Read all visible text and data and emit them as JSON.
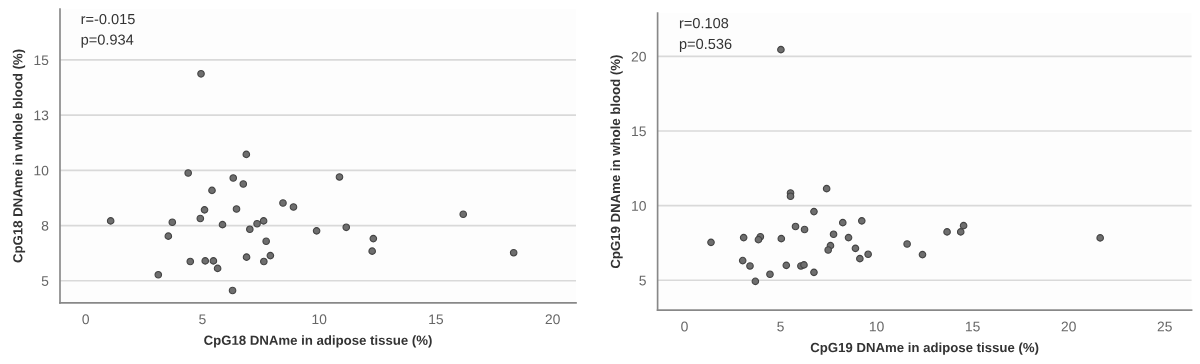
{
  "chart_data": [
    {
      "type": "scatter",
      "xlabel": "CpG18 DNAme in adipose tissue (%)",
      "ylabel": "CpG18 DNAme in whole blood (%)",
      "annotations": [
        "r=-0.015",
        "p=0.934"
      ],
      "grid": "y",
      "marker": "circle",
      "xlim": [
        -1.1,
        21
      ],
      "xticks": [
        0,
        5,
        10,
        15,
        20
      ],
      "ylim": [
        4,
        17.3
      ],
      "yticks": [
        5,
        {
          "value": 7.5,
          "label": "8"
        },
        10,
        {
          "value": 12.5,
          "label": "13"
        },
        15
      ],
      "series": [
        {
          "color": "#6e6e6e",
          "x": [
            1.07,
            4.94,
            6.88,
            4.39,
            6.32,
            6.75,
            5.41,
            5.09,
            6.46,
            4.91,
            3.71,
            5.86,
            7.34,
            7.62,
            7.03,
            3.54,
            7.73,
            7.91,
            6.89,
            4.48,
            5.12,
            5.47,
            7.63,
            5.65,
            3.11,
            6.29,
            8.45,
            8.9,
            10.87,
            9.89,
            11.16,
            12.32,
            12.27,
            16.17,
            18.33
          ],
          "values": [
            7.71,
            14.37,
            10.72,
            9.88,
            9.65,
            9.38,
            9.09,
            8.21,
            8.25,
            7.82,
            7.65,
            7.54,
            7.58,
            7.71,
            7.33,
            7.02,
            6.79,
            6.14,
            6.07,
            5.87,
            5.9,
            5.9,
            5.87,
            5.56,
            5.27,
            4.56,
            8.52,
            8.34,
            9.7,
            7.26,
            7.42,
            6.91,
            6.34,
            8.01,
            6.27
          ]
        }
      ]
    },
    {
      "type": "scatter",
      "xlabel": "CpG19 DNAme in adipose tissue (%)",
      "ylabel": "CpG19 DNAme in whole blood (%)",
      "annotations": [
        "r=0.108",
        "p=0.536"
      ],
      "grid": "y",
      "marker": "circle",
      "xlim": [
        -1.4,
        26.4
      ],
      "xticks": [
        0,
        5,
        10,
        15,
        20,
        25
      ],
      "ylim": [
        3,
        22.9
      ],
      "yticks": [
        5,
        10,
        15,
        20
      ],
      "series": [
        {
          "color": "#6e6e6e",
          "x": [
            1.38,
            5.02,
            7.4,
            5.52,
            5.52,
            6.74,
            8.24,
            9.23,
            5.78,
            6.25,
            7.76,
            3.08,
            3.95,
            3.85,
            5.04,
            8.54,
            7.6,
            7.48,
            8.9,
            9.56,
            9.13,
            3.03,
            3.41,
            5.3,
            6.06,
            6.22,
            4.45,
            6.74,
            3.69,
            11.59,
            12.39,
            13.67,
            14.38,
            14.53,
            21.64
          ],
          "values": [
            7.54,
            20.45,
            11.14,
            10.85,
            10.63,
            9.6,
            8.86,
            8.98,
            8.6,
            8.4,
            8.08,
            7.86,
            7.92,
            7.72,
            7.79,
            7.86,
            7.32,
            7.03,
            7.14,
            6.74,
            6.45,
            6.32,
            5.96,
            6.0,
            5.96,
            6.03,
            5.4,
            5.53,
            4.93,
            7.43,
            6.72,
            8.24,
            8.24,
            8.66,
            7.84
          ]
        }
      ]
    }
  ]
}
